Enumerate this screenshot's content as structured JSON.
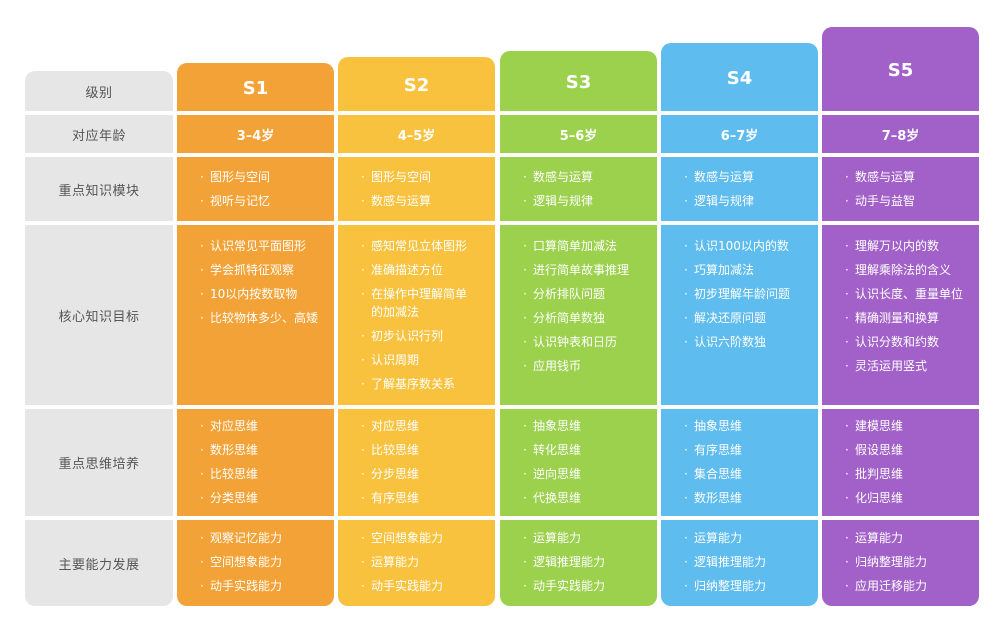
{
  "labels": {
    "level": "级别",
    "age": "对应年龄",
    "modules": "重点知识模块",
    "goals": "核心知识目标",
    "thinking": "重点思维培养",
    "ability": "主要能力发展"
  },
  "bullet": "·",
  "colors": {
    "S1": "#f2a236",
    "S2": "#f8c23f",
    "S3": "#9bd14d",
    "S4": "#5ebcef",
    "S5": "#a261c8",
    "label_bg": "#e6e6e6"
  },
  "columns": [
    {
      "level": "S1",
      "age": "3–4岁",
      "modules": [
        "图形与空间",
        "视听与记忆"
      ],
      "goals": [
        "认识常见平面图形",
        "学会抓特征观察",
        "10以内按数取物",
        "比较物体多少、高矮"
      ],
      "thinking": [
        "对应思维",
        "数形思维",
        "比较思维",
        "分类思维"
      ],
      "ability": [
        "观察记忆能力",
        "空间想象能力",
        "动手实践能力"
      ]
    },
    {
      "level": "S2",
      "age": "4–5岁",
      "modules": [
        "图形与空间",
        "数感与运算"
      ],
      "goals": [
        "感知常见立体图形",
        "准确描述方位",
        "在操作中理解简单的加减法",
        "初步认识行列",
        "认识周期",
        "了解基序数关系"
      ],
      "thinking": [
        "对应思维",
        "比较思维",
        "分步思维",
        "有序思维"
      ],
      "ability": [
        "空间想象能力",
        "运算能力",
        "动手实践能力"
      ]
    },
    {
      "level": "S3",
      "age": "5–6岁",
      "modules": [
        "数感与运算",
        "逻辑与规律"
      ],
      "goals": [
        "口算简单加减法",
        "进行简单故事推理",
        "分析排队问题",
        "分析简单数独",
        "认识钟表和日历",
        "应用钱币"
      ],
      "thinking": [
        "抽象思维",
        "转化思维",
        "逆向思维",
        "代换思维"
      ],
      "ability": [
        "运算能力",
        "逻辑推理能力",
        "动手实践能力"
      ]
    },
    {
      "level": "S4",
      "age": "6–7岁",
      "modules": [
        "数感与运算",
        "逻辑与规律"
      ],
      "goals": [
        "认识100以内的数",
        "巧算加减法",
        "初步理解年龄问题",
        "解决还原问题",
        "认识六阶数独"
      ],
      "thinking": [
        "抽象思维",
        "有序思维",
        "集合思维",
        "数形思维"
      ],
      "ability": [
        "运算能力",
        "逻辑推理能力",
        "归纳整理能力"
      ]
    },
    {
      "level": "S5",
      "age": "7–8岁",
      "modules": [
        "数感与运算",
        "动手与益智"
      ],
      "goals": [
        "理解万以内的数",
        "理解乘除法的含义",
        "认识长度、重量单位",
        "精确测量和换算",
        "认识分数和约数",
        "灵活运用竖式"
      ],
      "thinking": [
        "建模思维",
        "假设思维",
        "批判思维",
        "化归思维"
      ],
      "ability": [
        "运算能力",
        "归纳整理能力",
        "应用迁移能力"
      ]
    }
  ]
}
